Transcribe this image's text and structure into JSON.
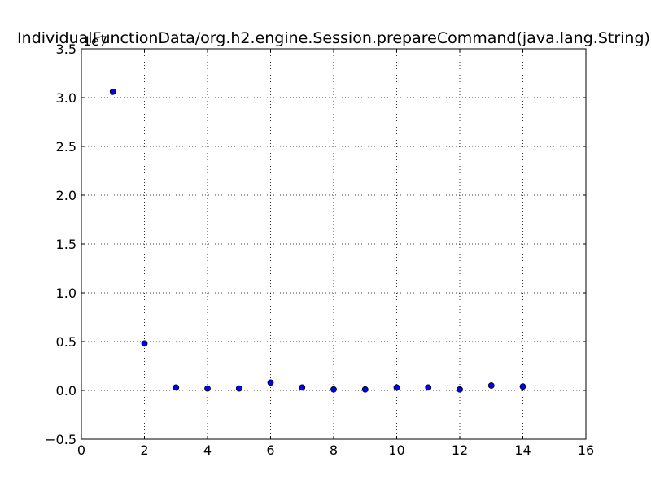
{
  "chart_data": {
    "type": "scatter",
    "title": "IndividualFunctionData/org.h2.engine.Session.prepareCommand(java.lang.String)",
    "xlabel": "",
    "ylabel": "",
    "y_offset_label": "1e7",
    "xlim": [
      0,
      16
    ],
    "ylim": [
      -0.5,
      3.5
    ],
    "x_ticks": [
      0,
      2,
      4,
      6,
      8,
      10,
      12,
      14,
      16
    ],
    "x_tick_labels": [
      "0",
      "2",
      "4",
      "6",
      "8",
      "10",
      "12",
      "14",
      "16"
    ],
    "y_ticks": [
      -0.5,
      0.0,
      0.5,
      1.0,
      1.5,
      2.0,
      2.5,
      3.0,
      3.5
    ],
    "y_tick_labels": [
      "−0.5",
      "0.0",
      "0.5",
      "1.0",
      "1.5",
      "2.0",
      "2.5",
      "3.0",
      "3.5"
    ],
    "grid": true,
    "marker_color": "#0000ff",
    "series": [
      {
        "x": [
          1,
          2,
          3,
          4,
          5,
          6,
          7,
          8,
          9,
          10,
          11,
          12,
          13,
          14
        ],
        "y": [
          3.06,
          0.48,
          0.03,
          0.02,
          0.02,
          0.08,
          0.03,
          0.01,
          0.01,
          0.03,
          0.03,
          0.01,
          0.05,
          0.04
        ]
      }
    ]
  }
}
